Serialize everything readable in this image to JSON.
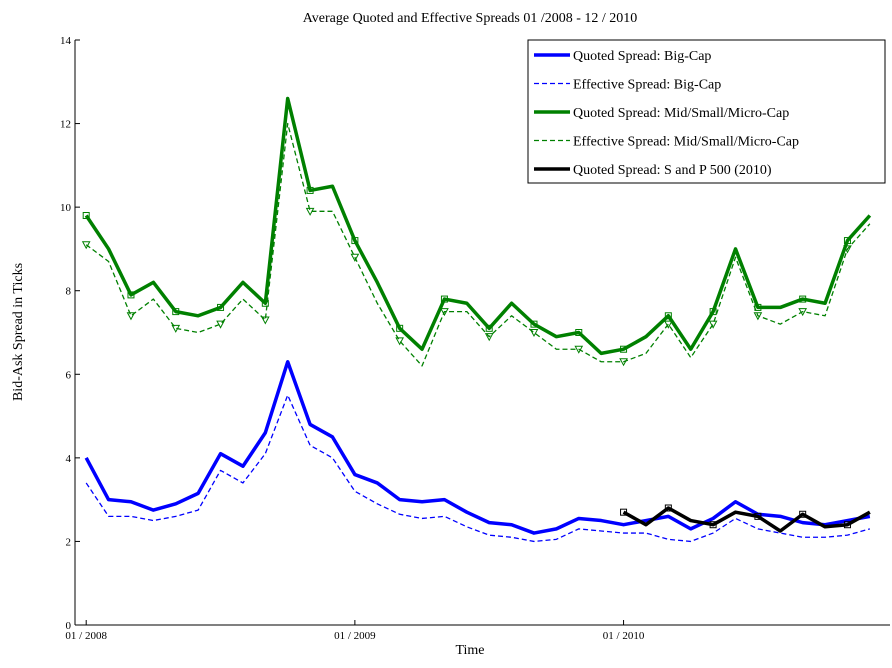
{
  "chart_data": {
    "type": "line",
    "title": "Average Quoted and Effective Spreads 01 /2008 - 12 / 2010",
    "x_label": "Time",
    "y_label": "Bid-Ask Spread in Ticks",
    "x": [
      0,
      1,
      2,
      3,
      4,
      5,
      6,
      7,
      8,
      9,
      10,
      11,
      12,
      13,
      14,
      15,
      16,
      17,
      18,
      19,
      20,
      21,
      22,
      23,
      24,
      25,
      26,
      27,
      28,
      29,
      30,
      31,
      32,
      33,
      34,
      35
    ],
    "xlim": [
      -0.5,
      35.9
    ],
    "xticks": [
      {
        "value": 0,
        "label": "01 / 2008"
      },
      {
        "value": 12,
        "label": "01 / 2009"
      },
      {
        "value": 24,
        "label": "01 / 2010"
      }
    ],
    "ylim": [
      0,
      14
    ],
    "yticks": [
      0,
      2,
      4,
      6,
      8,
      10,
      12,
      14
    ],
    "legend_position": "upper right",
    "series": [
      {
        "name": "Quoted Spread: Big-Cap",
        "color": "#0000ff",
        "dash": false,
        "marker": "none",
        "values": [
          4.0,
          3.0,
          2.95,
          2.75,
          2.9,
          3.15,
          4.1,
          3.8,
          4.6,
          6.3,
          4.8,
          4.5,
          3.6,
          3.4,
          3.0,
          2.95,
          3.0,
          2.7,
          2.45,
          2.4,
          2.2,
          2.3,
          2.55,
          2.5,
          2.4,
          2.5,
          2.6,
          2.3,
          2.55,
          2.95,
          2.65,
          2.6,
          2.45,
          2.4,
          2.5,
          2.6
        ]
      },
      {
        "name": "Effective Spread: Big-Cap",
        "color": "#0000ff",
        "dash": true,
        "marker": "none",
        "values": [
          3.4,
          2.6,
          2.6,
          2.5,
          2.6,
          2.75,
          3.7,
          3.4,
          4.1,
          5.5,
          4.3,
          4.0,
          3.2,
          2.9,
          2.65,
          2.55,
          2.6,
          2.35,
          2.15,
          2.1,
          2.0,
          2.05,
          2.3,
          2.25,
          2.2,
          2.2,
          2.05,
          2.0,
          2.2,
          2.55,
          2.3,
          2.2,
          2.1,
          2.1,
          2.15,
          2.3
        ]
      },
      {
        "name": "Quoted Spread: Mid/Small/Micro-Cap",
        "color": "#008000",
        "dash": false,
        "marker": "square",
        "values": [
          9.8,
          9.0,
          7.9,
          8.2,
          7.5,
          7.4,
          7.6,
          8.2,
          7.7,
          12.6,
          10.4,
          10.5,
          9.2,
          8.2,
          7.1,
          6.6,
          7.8,
          7.7,
          7.1,
          7.7,
          7.2,
          6.9,
          7.0,
          6.5,
          6.6,
          6.9,
          7.4,
          6.6,
          7.5,
          9.0,
          7.6,
          7.6,
          7.8,
          7.7,
          9.2,
          9.8
        ]
      },
      {
        "name": "Effective Spread: Mid/Small/Micro-Cap",
        "color": "#008000",
        "dash": true,
        "marker": "triangle",
        "values": [
          9.1,
          8.7,
          7.4,
          7.8,
          7.1,
          7.0,
          7.2,
          7.8,
          7.3,
          12.0,
          9.9,
          9.9,
          8.8,
          7.7,
          6.8,
          6.2,
          7.5,
          7.5,
          6.9,
          7.4,
          7.0,
          6.6,
          6.6,
          6.3,
          6.3,
          6.5,
          7.2,
          6.4,
          7.2,
          8.8,
          7.4,
          7.2,
          7.5,
          7.4,
          9.0,
          9.6
        ]
      },
      {
        "name": "Quoted Spread: S and P 500 (2010)",
        "color": "#000000",
        "dash": false,
        "marker": "square",
        "values": [
          null,
          null,
          null,
          null,
          null,
          null,
          null,
          null,
          null,
          null,
          null,
          null,
          null,
          null,
          null,
          null,
          null,
          null,
          null,
          null,
          null,
          null,
          null,
          null,
          2.7,
          2.4,
          2.8,
          2.5,
          2.4,
          2.7,
          2.6,
          2.25,
          2.65,
          2.35,
          2.4,
          2.7
        ]
      }
    ]
  }
}
